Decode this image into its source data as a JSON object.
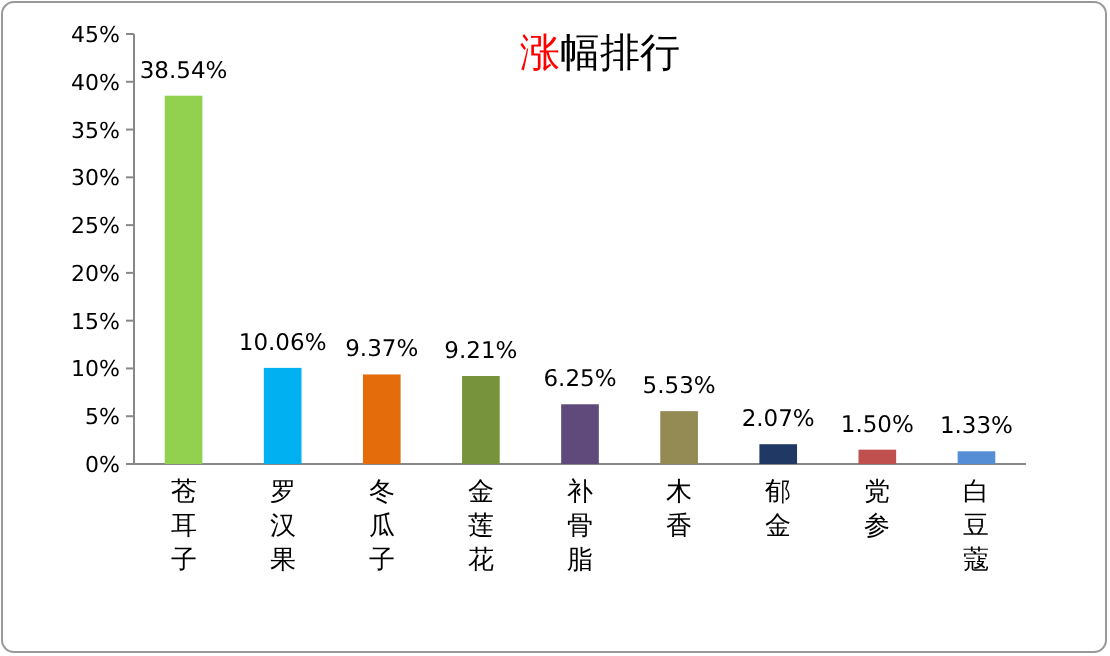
{
  "chart_data": {
    "type": "bar",
    "title": "涨幅排行",
    "categories": [
      "苍耳子",
      "罗汉果",
      "冬瓜子",
      "金莲花",
      "补骨脂",
      "木香",
      "郁金",
      "党参",
      "白豆蔻"
    ],
    "values": [
      38.54,
      10.06,
      9.37,
      9.21,
      6.25,
      5.53,
      2.07,
      1.5,
      1.33
    ],
    "colors": [
      "#92d050",
      "#00b0f0",
      "#e46c0a",
      "#77933c",
      "#604a7b",
      "#948a54",
      "#1f3864",
      "#c0504d",
      "#558ed5"
    ],
    "value_labels": [
      "38.54%",
      "10.06%",
      "9.37%",
      "9.21%",
      "6.25%",
      "5.53%",
      "2.07%",
      "1.50%",
      "1.33%"
    ],
    "ylim": [
      0,
      45
    ],
    "yticks": [
      {
        "value": 0,
        "label": "0%"
      },
      {
        "value": 5,
        "label": "5%"
      },
      {
        "value": 10,
        "label": "10%"
      },
      {
        "value": 15,
        "label": "15%"
      },
      {
        "value": 20,
        "label": "20%"
      },
      {
        "value": 25,
        "label": "25%"
      },
      {
        "value": 30,
        "label": "30%"
      },
      {
        "value": 35,
        "label": "35%"
      },
      {
        "value": 40,
        "label": "40%"
      },
      {
        "value": 45,
        "label": "45%"
      }
    ],
    "grid": false
  }
}
